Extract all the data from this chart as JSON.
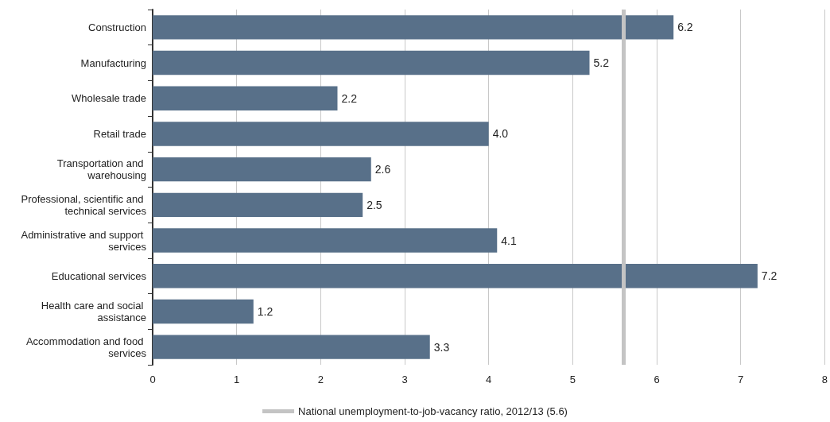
{
  "chart_data": {
    "type": "bar",
    "orientation": "horizontal",
    "categories": [
      "Construction",
      "Manufacturing",
      "Wholesale trade",
      "Retail trade",
      "Transportation and warehousing",
      "Professional, scientific and technical services",
      "Administrative and support services",
      "Educational services",
      "Health care and social assistance",
      "Accommodation and food services"
    ],
    "values": [
      6.2,
      5.2,
      2.2,
      4.0,
      2.6,
      2.5,
      4.1,
      7.2,
      1.2,
      3.3
    ],
    "value_labels": [
      "6.2",
      "5.2",
      "2.2",
      "4.0",
      "2.6",
      "2.5",
      "4.1",
      "7.2",
      "1.2",
      "3.3"
    ],
    "color": "#587089",
    "xlim": [
      0,
      8
    ],
    "xticks": [
      0,
      1,
      2,
      3,
      4,
      5,
      6,
      7,
      8
    ],
    "grid": "x",
    "legend": "bottom",
    "ref_lines": [
      {
        "axis": "x",
        "value": 5.6,
        "label": "National unemployment-to-job-vacancy ratio, 2012/13 (5.6)",
        "color": "#c4c4c4"
      }
    ]
  }
}
